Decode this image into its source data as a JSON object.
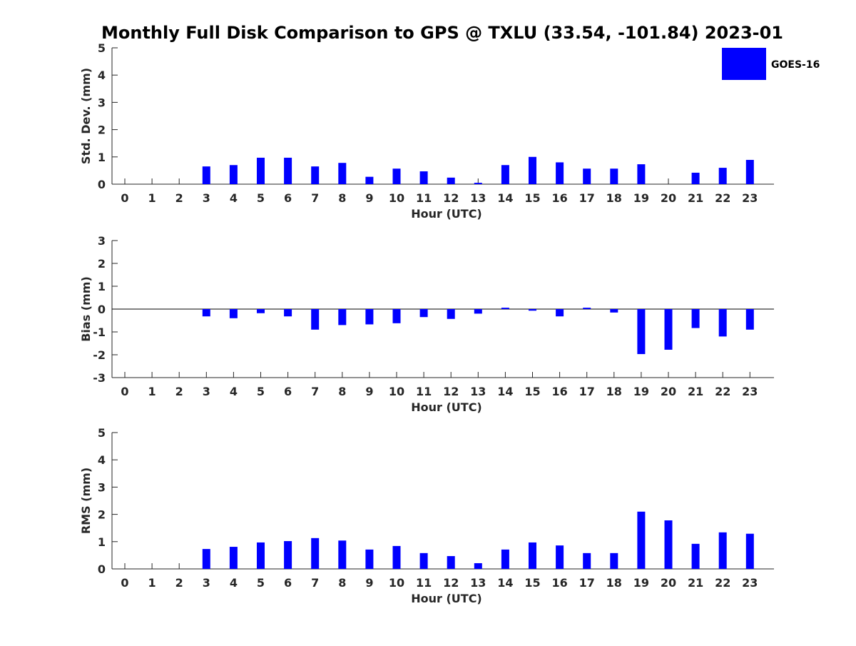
{
  "title": "Monthly Full Disk Comparison to GPS @ TXLU (33.54, -101.84) 2023-01",
  "legend": {
    "label": "GOES-16",
    "color": "#0000ff",
    "placement": "top-right"
  },
  "chart_data": [
    {
      "type": "bar",
      "ylabel": "Std. Dev. (mm)",
      "xlabel": "Hour (UTC)",
      "ylim": [
        0,
        5
      ],
      "yticks": [
        0,
        1,
        2,
        3,
        4,
        5
      ],
      "categories": [
        "0",
        "1",
        "2",
        "3",
        "4",
        "5",
        "6",
        "7",
        "8",
        "9",
        "10",
        "11",
        "12",
        "13",
        "14",
        "15",
        "16",
        "17",
        "18",
        "19",
        "20",
        "21",
        "22",
        "23"
      ],
      "series": [
        {
          "name": "GOES-16",
          "values": [
            0,
            0,
            0,
            0.65,
            0.7,
            0.97,
            0.97,
            0.65,
            0.78,
            0.27,
            0.57,
            0.47,
            0.24,
            0.05,
            0.7,
            1.0,
            0.8,
            0.57,
            0.57,
            0.73,
            0,
            0.42,
            0.6,
            0.89
          ]
        }
      ]
    },
    {
      "type": "bar",
      "ylabel": "Bias (mm)",
      "xlabel": "Hour (UTC)",
      "ylim": [
        -3,
        3
      ],
      "yticks": [
        -3,
        -2,
        -1,
        0,
        1,
        2,
        3
      ],
      "categories": [
        "0",
        "1",
        "2",
        "3",
        "4",
        "5",
        "6",
        "7",
        "8",
        "9",
        "10",
        "11",
        "12",
        "13",
        "14",
        "15",
        "16",
        "17",
        "18",
        "19",
        "20",
        "21",
        "22",
        "23"
      ],
      "series": [
        {
          "name": "GOES-16",
          "values": [
            0,
            0,
            0,
            -0.32,
            -0.4,
            -0.18,
            -0.32,
            -0.9,
            -0.7,
            -0.67,
            -0.62,
            -0.35,
            -0.43,
            -0.2,
            0.06,
            -0.07,
            -0.32,
            0.06,
            -0.15,
            -1.97,
            -1.78,
            -0.83,
            -1.2,
            -0.9
          ]
        }
      ]
    },
    {
      "type": "bar",
      "ylabel": "RMS (mm)",
      "xlabel": "Hour (UTC)",
      "ylim": [
        0,
        5
      ],
      "yticks": [
        0,
        1,
        2,
        3,
        4,
        5
      ],
      "categories": [
        "0",
        "1",
        "2",
        "3",
        "4",
        "5",
        "6",
        "7",
        "8",
        "9",
        "10",
        "11",
        "12",
        "13",
        "14",
        "15",
        "16",
        "17",
        "18",
        "19",
        "20",
        "21",
        "22",
        "23"
      ],
      "series": [
        {
          "name": "GOES-16",
          "values": [
            0,
            0,
            0,
            0.73,
            0.81,
            0.97,
            1.02,
            1.13,
            1.04,
            0.71,
            0.84,
            0.58,
            0.47,
            0.21,
            0.71,
            0.97,
            0.86,
            0.58,
            0.58,
            2.1,
            1.78,
            0.92,
            1.34,
            1.29
          ]
        }
      ]
    }
  ]
}
